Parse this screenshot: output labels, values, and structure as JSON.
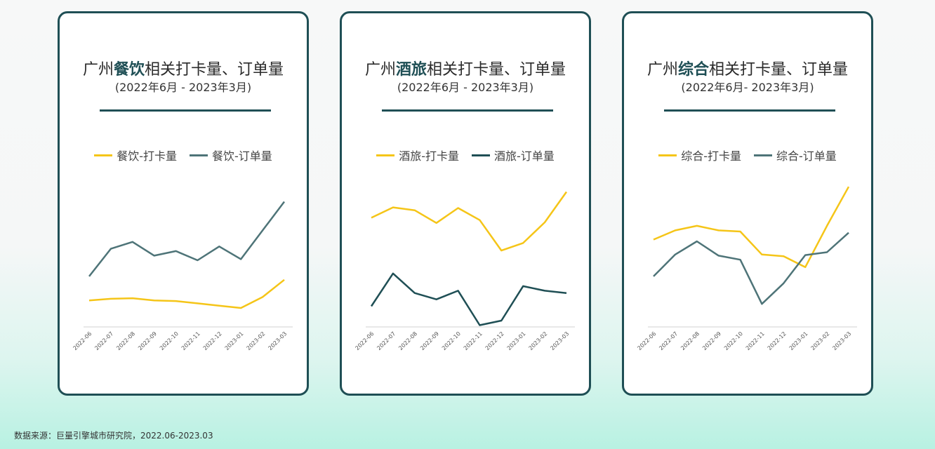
{
  "footer": {
    "source": "数据来源：巨量引擎城市研究院，2022.06-2023.03"
  },
  "colors": {
    "checkin": "#F5C518",
    "order_catering": "#4E7478",
    "order_hotel": "#1F4F55",
    "order_combined": "#4E7478"
  },
  "panels": [
    {
      "title_pre": "广州",
      "title_bold": "餐饮",
      "title_post": "相关打卡量、订单量",
      "subtitle": "(2022年6月 - 2023年3月)"
    },
    {
      "title_pre": "广州",
      "title_bold": "酒旅",
      "title_post": "相关打卡量、订单量",
      "subtitle": "(2022年6月 - 2023年3月)"
    },
    {
      "title_pre": "广州",
      "title_bold": "综合",
      "title_post": "相关打卡量、订单量",
      "subtitle": "(2022年6月- 2023年3月)"
    }
  ],
  "chart_data": [
    {
      "type": "line",
      "x": [
        "2022-06",
        "2022-07",
        "2022-08",
        "2022-09",
        "2022-10",
        "2022-11",
        "2022-12",
        "2023-01",
        "2023-02",
        "2023-03"
      ],
      "ylim": [
        0,
        100
      ],
      "series": [
        {
          "name": "餐饮-打卡量",
          "color": "#F5C518",
          "values": [
            23,
            24.5,
            25,
            23,
            22.5,
            20.5,
            18.5,
            16.5,
            26,
            41
          ]
        },
        {
          "name": "餐饮-订单量",
          "color": "#4E7478",
          "values": [
            44,
            68,
            74,
            62,
            66,
            58,
            70,
            59,
            84,
            109
          ]
        }
      ]
    },
    {
      "type": "line",
      "x": [
        "2022-06",
        "2022-07",
        "2022-08",
        "2022-09",
        "2022-10",
        "2022-11",
        "2022-12",
        "2023-01",
        "2023-02",
        "2023-03"
      ],
      "ylim": [
        0,
        100
      ],
      "series": [
        {
          "name": "酒旅-打卡量",
          "color": "#F5C518",
          "values": [
            95,
            104,
            101.5,
            90.5,
            103.5,
            93,
            66.5,
            73,
            91,
            117.5
          ]
        },
        {
          "name": "酒旅-订单量",
          "color": "#1F4F55",
          "values": [
            18,
            46.5,
            29.5,
            24,
            31.5,
            1.5,
            5.5,
            35.5,
            31.5,
            29.5
          ]
        }
      ]
    },
    {
      "type": "line",
      "x": [
        "2022-06",
        "2022-07",
        "2022-08",
        "2022-09",
        "2022-10",
        "2022-11",
        "2022-12",
        "2023-01",
        "2023-02",
        "2023-03"
      ],
      "ylim": [
        0,
        100
      ],
      "series": [
        {
          "name": "综合-打卡量",
          "color": "#F5C518",
          "values": [
            76,
            84,
            88,
            84,
            83,
            63,
            61.5,
            52,
            88,
            122
          ]
        },
        {
          "name": "综合-订单量",
          "color": "#4E7478",
          "values": [
            44,
            63,
            74.5,
            62,
            58.5,
            20,
            38,
            62.5,
            65,
            82
          ]
        }
      ]
    }
  ]
}
